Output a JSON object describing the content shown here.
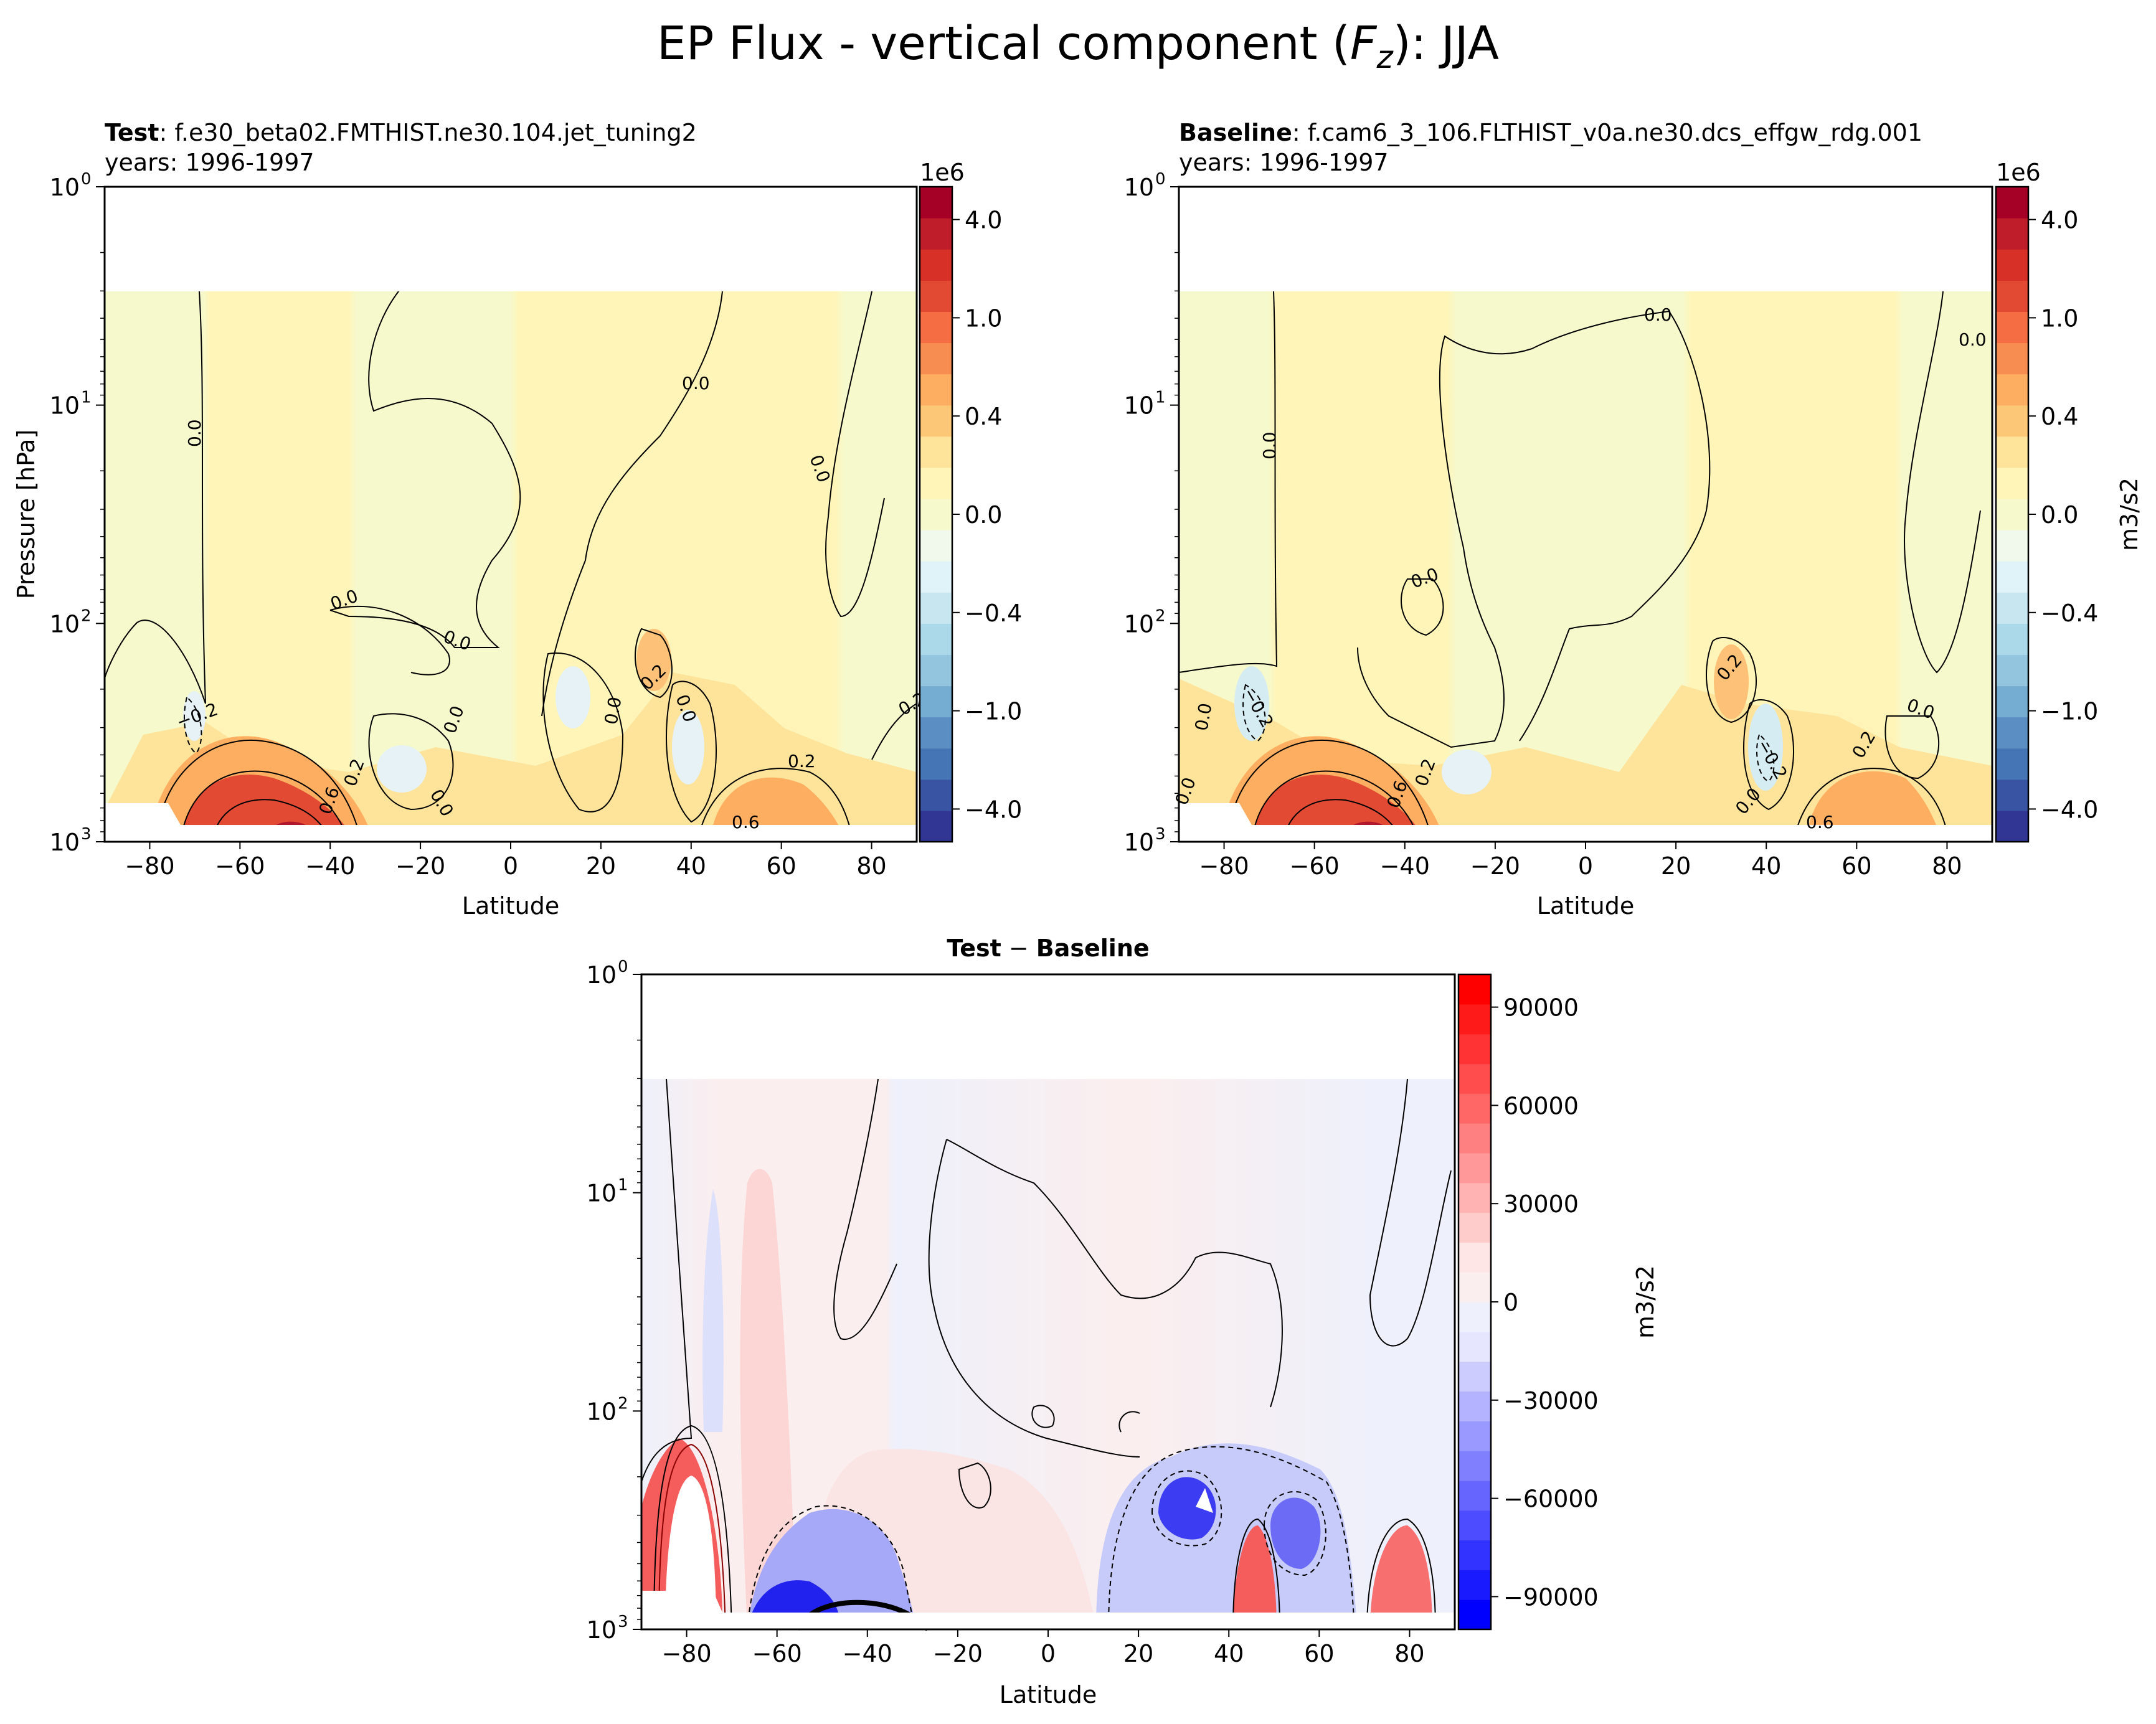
{
  "figure": {
    "title": "EP Flux - vertical component",
    "title_symbol": "F",
    "title_subscript": "z",
    "title_season": "JJA"
  },
  "chart_data": [
    {
      "type": "heatmap",
      "id": "test",
      "title_bold": "Test",
      "title_rest": ": f.e30_beta02.FMTHIST.ne30.104.jet_tuning2",
      "subtitle": "years: 1996-1997",
      "xlabel": "Latitude",
      "ylabel": "Pressure [hPa]",
      "xlim": [
        -90,
        90
      ],
      "ylim": [
        1000,
        1
      ],
      "yscale": "log",
      "xticks": [
        "−80",
        "−60",
        "−40",
        "−20",
        "0",
        "20",
        "40",
        "60",
        "80"
      ],
      "yticks": [
        "10",
        "10",
        "10",
        "10"
      ],
      "ytick_exponents": [
        "0",
        "1",
        "2",
        "3"
      ],
      "colorbar": {
        "cmap": "RdYlBu_r",
        "offset_label": "1e6",
        "ticks": [
          "4.0",
          "1.0",
          "0.4",
          "0.0",
          "−0.4",
          "−1.0",
          "−4.0"
        ],
        "label": ""
      },
      "contour_labels": [
        "0.0",
        "0.0",
        "0.0",
        "0.0",
        "0.0",
        "0.0",
        "−0.2",
        "0.2",
        "0.0",
        "0.0",
        "0.2",
        "0.2",
        "0.0",
        "0.6",
        "0.6",
        "0.2",
        "0.0",
        "0.0"
      ]
    },
    {
      "type": "heatmap",
      "id": "baseline",
      "title_bold": "Baseline",
      "title_rest": ": f.cam6_3_106.FLTHIST_v0a.ne30.dcs_effgw_rdg.001",
      "subtitle": "years: 1996-1997",
      "xlabel": "Latitude",
      "xlim": [
        -90,
        90
      ],
      "ylim": [
        1000,
        1
      ],
      "yscale": "log",
      "xticks": [
        "−80",
        "−60",
        "−40",
        "−20",
        "0",
        "20",
        "40",
        "60",
        "80"
      ],
      "yticks": [
        "10",
        "10",
        "10",
        "10"
      ],
      "ytick_exponents": [
        "0",
        "1",
        "2",
        "3"
      ],
      "colorbar": {
        "cmap": "RdYlBu_r",
        "offset_label": "1e6",
        "ticks": [
          "4.0",
          "1.0",
          "0.4",
          "0.0",
          "−0.4",
          "−1.0",
          "−4.0"
        ],
        "label": "m3/s2"
      },
      "contour_labels": [
        "0.0",
        "0.0",
        "0.0",
        "0.0",
        "0.0",
        "−0.2",
        "0.2",
        "0.0",
        "0.2",
        "−0.2",
        "0.2",
        "0.0",
        "0.6",
        "0.6",
        "0.0"
      ]
    },
    {
      "type": "heatmap",
      "id": "difference",
      "title_bold_left": "Test",
      "title_mid": " − ",
      "title_bold_right": "Baseline",
      "xlabel": "Latitude",
      "xlim": [
        -90,
        90
      ],
      "ylim": [
        1000,
        1
      ],
      "yscale": "log",
      "xticks": [
        "−80",
        "−60",
        "−40",
        "−20",
        "0",
        "20",
        "40",
        "60",
        "80"
      ],
      "yticks": [
        "10",
        "10",
        "10",
        "10"
      ],
      "ytick_exponents": [
        "0",
        "1",
        "2",
        "3"
      ],
      "colorbar": {
        "cmap": "bwr",
        "ticks": [
          "90000",
          "60000",
          "30000",
          "0",
          "−30000",
          "−60000",
          "−90000"
        ],
        "label": "m3/s2"
      }
    }
  ]
}
